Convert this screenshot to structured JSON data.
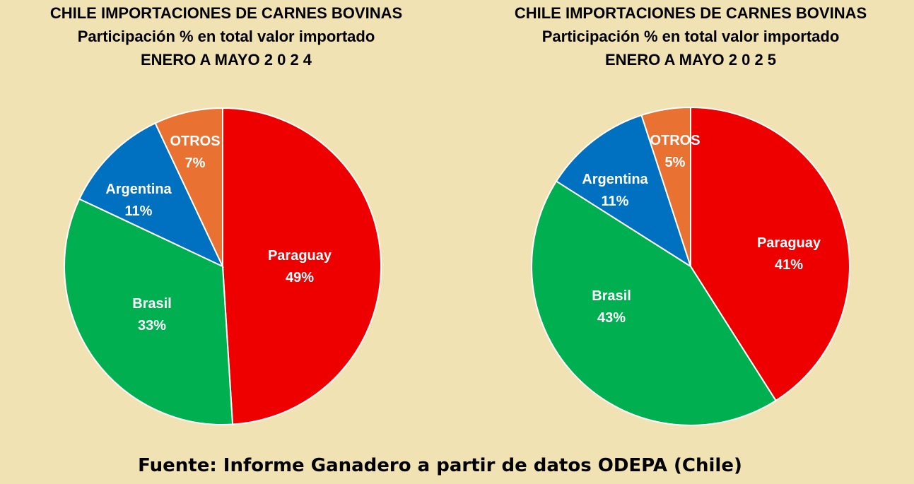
{
  "colors": {
    "background": "#F0E2B2",
    "Paraguay": "#EE0000",
    "Brasil": "#00B050",
    "Argentina": "#0070C0",
    "OTROS": "#E97132"
  },
  "charts": [
    {
      "title_line1": "CHILE IMPORTACIONES DE CARNES BOVINAS",
      "title_line2": "Participación % en total valor importado",
      "title_line3": "ENERO A MAYO 2 0 2 4"
    },
    {
      "title_line1": "CHILE IMPORTACIONES DE CARNES BOVINAS",
      "title_line2": "Participación % en total valor importado",
      "title_line3": "ENERO A MAYO 2 0 2 5"
    }
  ],
  "source": "Fuente: Informe Ganadero a partir de datos ODEPA (Chile)",
  "chart_data": [
    {
      "type": "pie",
      "title": "CHILE IMPORTACIONES DE CARNES BOVINAS — Participación % en total valor importado — ENERO A MAYO 2 0 2 4",
      "categories": [
        "Paraguay",
        "Brasil",
        "Argentina",
        "OTROS"
      ],
      "values": [
        49,
        33,
        11,
        7
      ],
      "labels": [
        "49%",
        "33%",
        "11%",
        "7%"
      ]
    },
    {
      "type": "pie",
      "title": "CHILE IMPORTACIONES DE CARNES BOVINAS — Participación % en total valor importado — ENERO A MAYO 2 0 2 5",
      "categories": [
        "Paraguay",
        "Brasil",
        "Argentina",
        "OTROS"
      ],
      "values": [
        41,
        43,
        11,
        5
      ],
      "labels": [
        "41%",
        "43%",
        "11%",
        "5%"
      ]
    }
  ]
}
